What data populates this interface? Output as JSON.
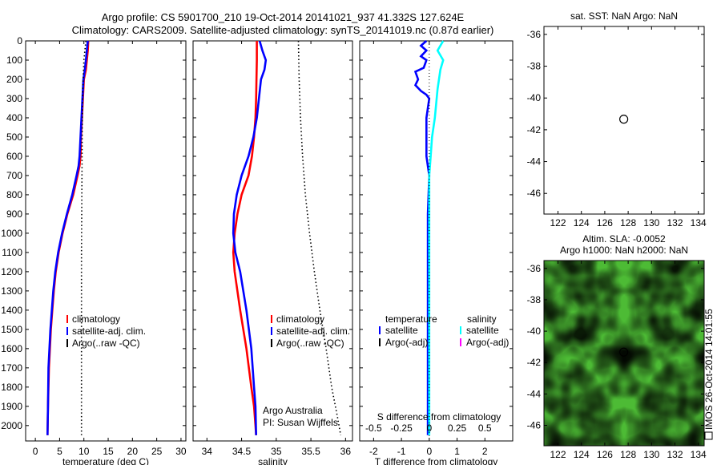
{
  "header": {
    "line1": "Argo profile: CS 5901700_210 19-Oct-2014 20141021_937 41.332S 127.624E",
    "line2": "Climatology: CARS2009. Satellite-adjusted climatology: synTS_20141019.nc (0.87d earlier)"
  },
  "side_stamp": "IMOS 26-Oct-2014 14:01:55",
  "colors": {
    "climatology": "#ff0000",
    "satellite": "#0000ff",
    "argo": "#000000",
    "satellite_salinity": "#00ffff",
    "argo_salinity": "#ff00ff",
    "map_green": "#4dbb35"
  },
  "chart_data": [
    {
      "id": "temperature",
      "type": "line",
      "xlabel": "temperature (deg C)",
      "ylabel": "",
      "xlim": [
        -2,
        31
      ],
      "ylim": [
        2080,
        0
      ],
      "xticks": [
        0,
        5,
        10,
        15,
        20,
        25,
        30
      ],
      "yticks": [
        0,
        100,
        200,
        300,
        400,
        500,
        600,
        700,
        800,
        900,
        1000,
        1100,
        1200,
        1300,
        1400,
        1500,
        1600,
        1700,
        1800,
        1900,
        2000
      ],
      "legend": [
        "climatology",
        "satellite-adj. clim.",
        "Argo(..raw -QC)"
      ],
      "series": [
        {
          "name": "climatology",
          "color": "#ff0000",
          "x": [
            10.9,
            10.8,
            10.6,
            10.4,
            10.0,
            9.8,
            9.6,
            9.4,
            9.3,
            9.1,
            8.7,
            7.8,
            6.6,
            5.6,
            4.8,
            4.2,
            3.8,
            3.5,
            3.2,
            3.0,
            2.8,
            2.6,
            2.5
          ],
          "y": [
            0,
            50,
            100,
            150,
            200,
            300,
            400,
            500,
            600,
            650,
            700,
            800,
            900,
            1000,
            1100,
            1200,
            1300,
            1400,
            1500,
            1600,
            1700,
            1900,
            2050
          ]
        },
        {
          "name": "satellite-adj. clim.",
          "color": "#0000ff",
          "x": [
            10.8,
            10.6,
            10.4,
            10.2,
            9.9,
            9.7,
            9.5,
            9.3,
            9.1,
            8.9,
            8.5,
            7.6,
            6.5,
            5.5,
            4.7,
            4.1,
            3.7,
            3.4,
            3.1,
            2.9,
            2.7,
            2.6,
            2.5
          ],
          "y": [
            0,
            50,
            100,
            150,
            200,
            300,
            400,
            500,
            600,
            650,
            700,
            800,
            900,
            1000,
            1100,
            1200,
            1300,
            1400,
            1500,
            1600,
            1700,
            1900,
            2050
          ]
        },
        {
          "name": "Argo(..raw -QC)",
          "color": "#000000",
          "style": "dotted",
          "x": [
            10.4,
            10.0,
            9.7,
            9.6,
            9.5,
            9.5,
            9.5
          ],
          "y": [
            0,
            100,
            300,
            700,
            1100,
            1600,
            2050
          ]
        }
      ]
    },
    {
      "id": "salinity",
      "type": "line",
      "xlabel": "salinity",
      "ylabel": "",
      "xlim": [
        33.8,
        36.1
      ],
      "ylim": [
        2080,
        0
      ],
      "xticks": [
        34,
        34.5,
        35,
        35.5,
        36
      ],
      "xtick_labels": [
        "34",
        "34.5",
        "35",
        "35.5",
        "36"
      ],
      "legend": [
        "climatology",
        "satellite-adj. clim.",
        "Argo(..raw -QC)"
      ],
      "annotation": [
        "Argo Australia",
        "PI: Susan Wijffels"
      ],
      "series": [
        {
          "name": "climatology",
          "color": "#ff0000",
          "x": [
            34.72,
            34.72,
            34.71,
            34.7,
            34.68,
            34.65,
            34.6,
            34.5,
            34.44,
            34.4,
            34.38,
            34.4,
            34.48,
            34.57,
            34.64,
            34.68,
            34.7,
            34.71
          ],
          "y": [
            0,
            100,
            300,
            400,
            500,
            600,
            700,
            800,
            900,
            1000,
            1100,
            1200,
            1400,
            1600,
            1800,
            1900,
            2000,
            2050
          ]
        },
        {
          "name": "satellite-adj. clim.",
          "color": "#0000ff",
          "x": [
            34.76,
            34.8,
            34.85,
            34.83,
            34.78,
            34.75,
            34.72,
            34.67,
            34.6,
            34.5,
            34.43,
            34.39,
            34.38,
            34.41,
            34.48,
            34.57,
            34.64,
            34.68,
            34.7,
            34.71
          ],
          "y": [
            0,
            50,
            100,
            150,
            200,
            300,
            400,
            500,
            600,
            700,
            800,
            900,
            1000,
            1100,
            1200,
            1400,
            1600,
            1800,
            1900,
            2050
          ]
        },
        {
          "name": "Argo(..raw -QC)",
          "color": "#000000",
          "style": "dotted",
          "x": [
            35.32,
            35.33,
            35.35,
            35.38,
            35.42,
            35.48,
            35.55,
            35.63,
            35.72,
            35.8,
            35.88,
            35.93
          ],
          "y": [
            0,
            200,
            400,
            600,
            800,
            1000,
            1200,
            1400,
            1600,
            1800,
            1950,
            2050
          ]
        }
      ]
    },
    {
      "id": "difference",
      "type": "line",
      "xlabel": "T difference from climatology",
      "top_label": "S difference from climatology",
      "xlim": [
        -2.5,
        3.0
      ],
      "ylim": [
        2080,
        0
      ],
      "xticks": [
        -2,
        -1,
        0,
        1,
        2
      ],
      "sticks_labels": [
        "-0.5",
        "-0.25",
        "0",
        "0.25",
        "0.5"
      ],
      "legend_headers": [
        "temperature",
        "salinity"
      ],
      "legend_left": [
        "satellite",
        "Argo(-adj)"
      ],
      "legend_right": [
        "satellite",
        "Argo(-adj)"
      ],
      "series": [
        {
          "name": "satellite",
          "group": "temperature",
          "color": "#0000ff",
          "x": [
            -0.1,
            -0.3,
            -0.1,
            -0.3,
            -0.1,
            -0.2,
            -0.5,
            -0.4,
            -0.5,
            -0.3,
            -0.1,
            0.0,
            -0.1,
            -0.1,
            -0.1,
            0.0,
            -0.05,
            -0.05,
            -0.05,
            -0.05,
            -0.05,
            -0.05
          ],
          "y": [
            0,
            25,
            50,
            80,
            100,
            140,
            160,
            200,
            230,
            260,
            280,
            300,
            400,
            500,
            600,
            700,
            900,
            1100,
            1300,
            1500,
            1800,
            2050
          ]
        },
        {
          "name": "satellite",
          "group": "salinity",
          "color": "#00ffff",
          "x": [
            0.5,
            0.3,
            0.5,
            0.4,
            0.3,
            0.2,
            0.1,
            0.05,
            0.0,
            0.0,
            0.0,
            0.0
          ],
          "y": [
            0,
            50,
            100,
            150,
            250,
            400,
            500,
            600,
            700,
            1000,
            1500,
            2050
          ]
        }
      ]
    },
    {
      "id": "sst_map",
      "type": "scatter",
      "title": "sat. SST: NaN Argo: NaN",
      "xlim": [
        120.8,
        134.5
      ],
      "ylim": [
        -47.3,
        -35.5
      ],
      "xticks": [
        122,
        124,
        126,
        128,
        130,
        132,
        134
      ],
      "yticks": [
        -36,
        -38,
        -40,
        -42,
        -44,
        -46
      ],
      "points": [
        {
          "x": 127.624,
          "y": -41.332
        }
      ]
    },
    {
      "id": "sla_map",
      "type": "heatmap",
      "title1": "Altim. SLA: -0.0052",
      "title2": "Argo h1000: NaN h2000: NaN",
      "xlim": [
        120.8,
        134.5
      ],
      "ylim": [
        -47.3,
        -35.5
      ],
      "xticks": [
        122,
        124,
        126,
        128,
        130,
        132,
        134
      ],
      "yticks": [
        -36,
        -38,
        -40,
        -42,
        -44,
        -46
      ],
      "points": [
        {
          "x": 127.624,
          "y": -41.332
        }
      ]
    }
  ]
}
